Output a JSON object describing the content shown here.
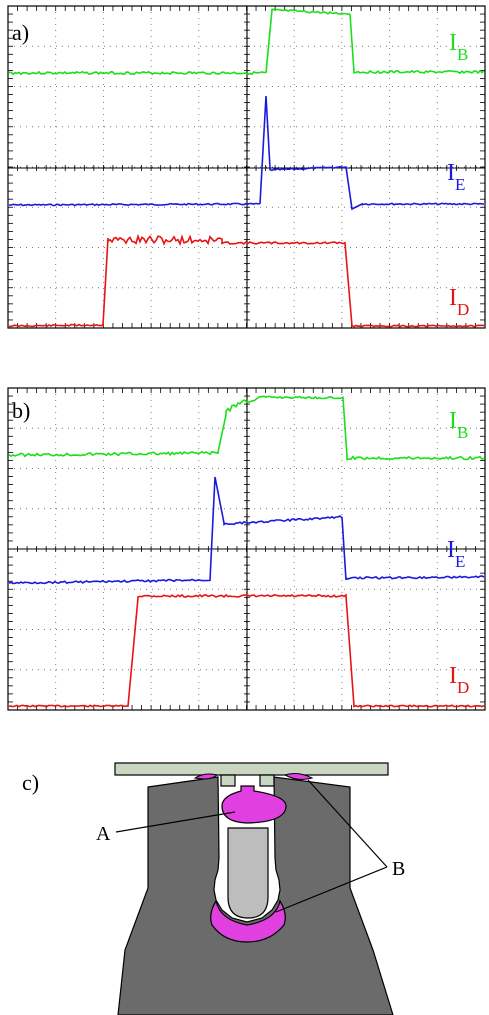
{
  "panels": [
    {
      "label": "a)",
      "traces": [
        {
          "name": "I",
          "subscript": "B",
          "color": "#1adf1a"
        },
        {
          "name": "I",
          "subscript": "E",
          "color": "#1a1adf"
        },
        {
          "name": "I",
          "subscript": "D",
          "color": "#e81414"
        }
      ]
    },
    {
      "label": "b)",
      "traces": [
        {
          "name": "I",
          "subscript": "B",
          "color": "#1adf1a"
        },
        {
          "name": "I",
          "subscript": "E",
          "color": "#1a1adf"
        },
        {
          "name": "I",
          "subscript": "D",
          "color": "#e81414"
        }
      ]
    }
  ],
  "diagram": {
    "label": "c)",
    "callout_a": "A",
    "callout_b": "B",
    "colors": {
      "body": "#6b6b6b",
      "plasma": "#e040e0",
      "plate": "#c9d6c2",
      "electrode": "#bdbdbd"
    }
  }
}
